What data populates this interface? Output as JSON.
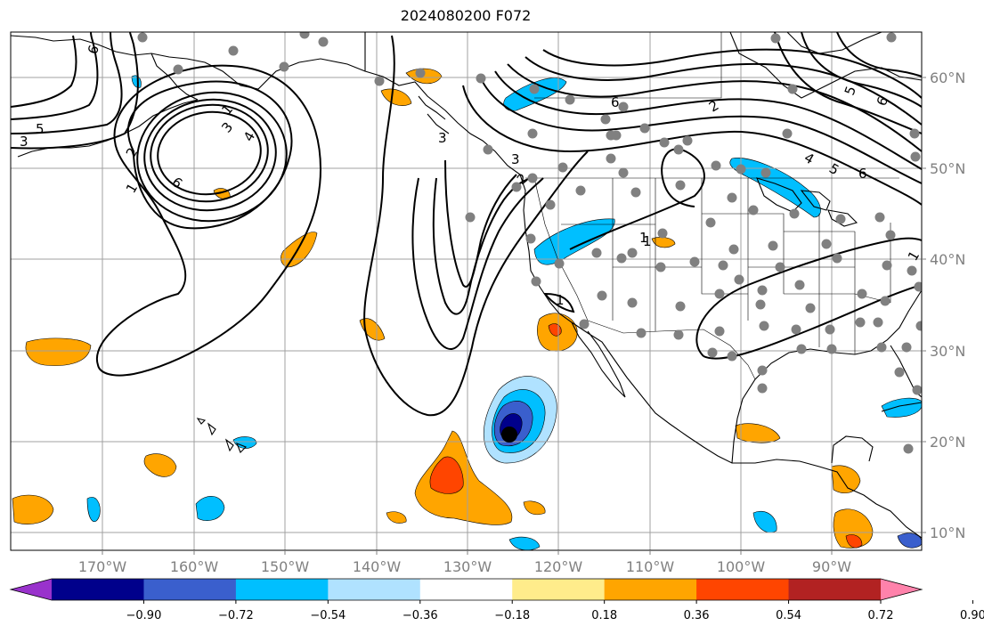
{
  "title": "2024080200 F072",
  "latitude_labels": [
    "60°N",
    "50°N",
    "40°N",
    "30°N",
    "20°N",
    "10°N"
  ],
  "longitude_labels": [
    "170°W",
    "160°W",
    "150°W",
    "140°W",
    "130°W",
    "120°W",
    "110°W",
    "100°W",
    "90°W"
  ],
  "colorbar": {
    "tick_labels": [
      "−0.90",
      "−0.72",
      "−0.54",
      "−0.36",
      "−0.18",
      "0.18",
      "0.36",
      "0.54",
      "0.72",
      "0.90"
    ],
    "colors": [
      "#9932cc",
      "#00008b",
      "#3a5fcd",
      "#00bfff",
      "#b0e2ff",
      "#ffffff",
      "#ffec8b",
      "#ffa500",
      "#ff4500",
      "#b22222",
      "#ff82ab"
    ]
  },
  "contour_labels": [
    "6",
    "5",
    "3",
    "1",
    "2",
    "4",
    "6",
    "1",
    "3",
    "1",
    "2",
    "3",
    "6",
    "2",
    "3",
    "1",
    "6",
    "4",
    "5",
    "6",
    "5",
    "1",
    "1"
  ],
  "colors": {
    "grid": "#a0a0a0",
    "coast": "#000000",
    "contour": "#000000",
    "station": "#808080",
    "storm_center": "#000000"
  }
}
